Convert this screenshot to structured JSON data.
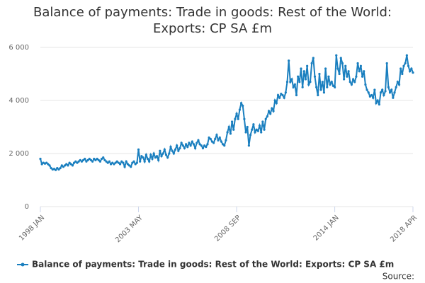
{
  "chart_data": {
    "type": "line",
    "title": "Balance of payments: Trade in goods: Rest of the World: Exports: CP SA £m",
    "source": "Source:",
    "categories": [
      "1998 JAN",
      null,
      null,
      null,
      null,
      null,
      null,
      null,
      null,
      null,
      null,
      null,
      null,
      null,
      null,
      null,
      null,
      null,
      null,
      null,
      null,
      null,
      null,
      null,
      null,
      null,
      null,
      null,
      null,
      null,
      null,
      null,
      null,
      null,
      null,
      null,
      null,
      null,
      null,
      null,
      null,
      null,
      null,
      null,
      null,
      null,
      null,
      null,
      null,
      null,
      null,
      null,
      null,
      null,
      null,
      null,
      null,
      null,
      null,
      null,
      null,
      null,
      null,
      null,
      "2003 MAY",
      null,
      null,
      null,
      null,
      null,
      null,
      null,
      null,
      null,
      null,
      null,
      null,
      null,
      null,
      null,
      null,
      null,
      null,
      null,
      null,
      null,
      null,
      null,
      null,
      null,
      null,
      null,
      null,
      null,
      null,
      null,
      null,
      null,
      null,
      null,
      null,
      null,
      null,
      null,
      null,
      null,
      null,
      null,
      null,
      null,
      null,
      null,
      null,
      null,
      null,
      null,
      null,
      null,
      null,
      null,
      null,
      null,
      null,
      null,
      null,
      null,
      null,
      null,
      "2008 SEP",
      null,
      null,
      null,
      null,
      null,
      null,
      null,
      null,
      null,
      null,
      null,
      null,
      null,
      null,
      null,
      null,
      null,
      null,
      null,
      null,
      null,
      null,
      null,
      null,
      null,
      null,
      null,
      null,
      null,
      null,
      null,
      null,
      null,
      null,
      null,
      null,
      null,
      null,
      null,
      null,
      null,
      null,
      null,
      null,
      null,
      null,
      null,
      null,
      null,
      null,
      null,
      null,
      null,
      null,
      null,
      null,
      null,
      null,
      null,
      null,
      null,
      null,
      null,
      "2014 JAN",
      null,
      null,
      null,
      null,
      null,
      null,
      null,
      null,
      null,
      null,
      null,
      null,
      null,
      null,
      null,
      null,
      null,
      null,
      null,
      null,
      null,
      null,
      null,
      null,
      null,
      null,
      null,
      null,
      null,
      null,
      null,
      null,
      null,
      null,
      null,
      null,
      null,
      null,
      null,
      null,
      null,
      null,
      null,
      null,
      null,
      null,
      null,
      null,
      null,
      null,
      "2018 APR"
    ],
    "series": [
      {
        "name": "Balance of payments: Trade in goods: Rest of the World: Exports: CP SA £m",
        "color": "#1a7fbf",
        "values": [
          1800,
          1600,
          1650,
          1620,
          1650,
          1600,
          1550,
          1450,
          1400,
          1420,
          1380,
          1450,
          1400,
          1450,
          1550,
          1500,
          1550,
          1600,
          1550,
          1650,
          1600,
          1550,
          1650,
          1700,
          1650,
          1700,
          1750,
          1700,
          1750,
          1800,
          1700,
          1750,
          1800,
          1750,
          1700,
          1800,
          1750,
          1800,
          1750,
          1700,
          1800,
          1850,
          1750,
          1700,
          1650,
          1700,
          1600,
          1650,
          1600,
          1650,
          1700,
          1650,
          1600,
          1700,
          1650,
          1500,
          1700,
          1600,
          1550,
          1500,
          1650,
          1700,
          1600,
          1650,
          2150,
          1700,
          1900,
          1850,
          1700,
          1950,
          1800,
          1700,
          1950,
          1800,
          2000,
          1850,
          1900,
          1750,
          2100,
          1900,
          2000,
          2150,
          1950,
          1850,
          2000,
          2250,
          2100,
          2000,
          2150,
          2300,
          2100,
          2200,
          2400,
          2300,
          2200,
          2350,
          2250,
          2400,
          2300,
          2450,
          2350,
          2200,
          2400,
          2500,
          2350,
          2300,
          2200,
          2300,
          2250,
          2350,
          2600,
          2550,
          2450,
          2400,
          2550,
          2700,
          2500,
          2600,
          2450,
          2350,
          2300,
          2500,
          2800,
          3000,
          2750,
          3200,
          2900,
          3300,
          3500,
          3300,
          3650,
          3900,
          3800,
          3300,
          2800,
          3000,
          2300,
          2700,
          2900,
          3100,
          2800,
          2900,
          2850,
          3050,
          2800,
          3200,
          2900,
          3300,
          3400,
          3600,
          3500,
          3700,
          3600,
          4000,
          3900,
          4200,
          4100,
          4250,
          4200,
          4100,
          4300,
          4700,
          5500,
          4700,
          4800,
          4500,
          4600,
          4200,
          4900,
          4700,
          5200,
          4500,
          5100,
          4800,
          5300,
          4600,
          4700,
          5400,
          5600,
          4900,
          4500,
          4200,
          5000,
          4400,
          4700,
          4300,
          5200,
          4500,
          4900,
          4600,
          4700,
          4550,
          4500,
          5700,
          5200,
          5000,
          5600,
          5400,
          4800,
          5300,
          4900,
          5100,
          4700,
          4600,
          4800,
          4700,
          4900,
          5400,
          5100,
          5300,
          4900,
          5100,
          4600,
          4400,
          4300,
          4150,
          4200,
          4100,
          4400,
          3900,
          4000,
          3850,
          4300,
          4400,
          4200,
          4350,
          5400,
          4500,
          4300,
          4400,
          4100,
          4300,
          4500,
          4700,
          4600,
          5200,
          5000,
          5300,
          5400,
          5700,
          5300,
          5100,
          5200,
          5050
        ]
      }
    ],
    "ylim": [
      0,
      6000
    ],
    "yticks": [
      0,
      {
        "value": 2000,
        "label": "2 000"
      },
      {
        "value": 4000,
        "label": "4 000"
      },
      {
        "value": 6000,
        "label": "6 000"
      }
    ],
    "grid": true
  }
}
